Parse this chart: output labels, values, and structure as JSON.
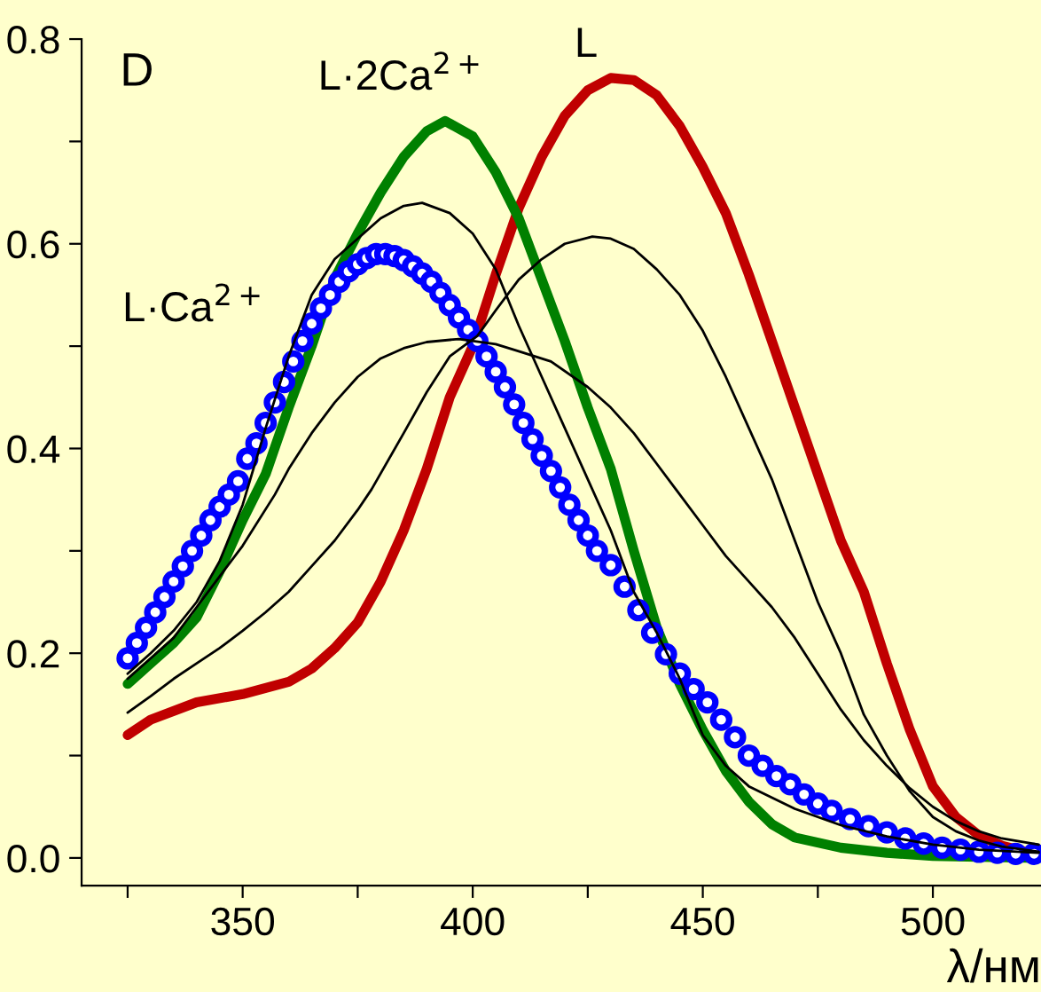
{
  "chart_data": {
    "type": "line",
    "ylabel": "D",
    "xlabel": "λ/нм",
    "xlim": [
      315,
      523.5
    ],
    "ylim": [
      -0.027,
      0.8
    ],
    "xticks": [
      {
        "value": 325,
        "label": null
      },
      350,
      {
        "value": 375,
        "label": null
      },
      400,
      {
        "value": 425,
        "label": null
      },
      450,
      {
        "value": 475,
        "label": null
      },
      500
    ],
    "yticks": [
      {
        "value": 0,
        "label": "0.0"
      },
      {
        "value": 0.1,
        "label": null
      },
      0.2,
      {
        "value": 0.3,
        "label": null
      },
      0.4,
      {
        "value": 0.5,
        "label": null
      },
      0.6,
      {
        "value": 0.7,
        "label": null
      },
      0.8
    ],
    "grid": false,
    "legend": false,
    "series": [
      {
        "name": "L",
        "color": "#c00000",
        "x": [
          325,
          330,
          340,
          350,
          360,
          365,
          370,
          375,
          380,
          385,
          390,
          395,
          400,
          405,
          410,
          415,
          420,
          425,
          430,
          435,
          440,
          445,
          450,
          455,
          460,
          465,
          470,
          475,
          480,
          485,
          490,
          495,
          500,
          505,
          510,
          515,
          520,
          523
        ],
        "values": [
          0.12,
          0.135,
          0.152,
          0.16,
          0.172,
          0.185,
          0.205,
          0.23,
          0.27,
          0.32,
          0.38,
          0.45,
          0.5,
          0.57,
          0.635,
          0.685,
          0.725,
          0.75,
          0.762,
          0.76,
          0.745,
          0.715,
          0.675,
          0.63,
          0.57,
          0.505,
          0.44,
          0.375,
          0.31,
          0.26,
          0.19,
          0.125,
          0.07,
          0.04,
          0.022,
          0.012,
          0.006,
          0.004
        ]
      },
      {
        "name": "L·2Ca$^{2+}$",
        "color": "#008000",
        "x": [
          325,
          330,
          335,
          340,
          345,
          350,
          355,
          360,
          365,
          370,
          375,
          380,
          385,
          390,
          394,
          400,
          405,
          410,
          415,
          420,
          425,
          430,
          435,
          440,
          445,
          450,
          455,
          460,
          465,
          470,
          480,
          490,
          500,
          510,
          523
        ],
        "values": [
          0.17,
          0.19,
          0.21,
          0.235,
          0.28,
          0.33,
          0.375,
          0.44,
          0.5,
          0.566,
          0.61,
          0.65,
          0.685,
          0.71,
          0.72,
          0.705,
          0.67,
          0.625,
          0.565,
          0.505,
          0.44,
          0.38,
          0.3,
          0.225,
          0.17,
          0.125,
          0.085,
          0.055,
          0.033,
          0.02,
          0.01,
          0.005,
          0.002,
          0.001,
          0
        ]
      },
      {
        "name": "L·Ca$^{2+}$",
        "color": "#0000ff",
        "type": "scatter",
        "x": [
          325,
          327,
          329,
          331,
          333,
          335,
          337,
          339,
          341,
          343,
          345,
          347,
          349,
          351,
          353,
          355,
          357,
          359,
          361,
          363,
          365,
          367,
          369,
          371,
          373,
          375,
          377,
          379,
          381,
          383,
          385,
          387,
          389,
          391,
          393,
          395,
          397,
          399,
          401,
          403,
          405,
          407,
          409,
          411,
          413,
          415,
          417,
          419,
          421,
          423,
          425,
          427,
          430,
          433,
          436,
          439,
          442,
          445,
          448,
          451,
          454,
          457,
          460,
          463,
          466,
          469,
          472,
          475,
          478,
          482,
          486,
          490,
          494,
          498,
          502,
          506,
          510,
          514,
          518,
          522
        ],
        "values": [
          0.195,
          0.21,
          0.225,
          0.24,
          0.255,
          0.27,
          0.285,
          0.3,
          0.315,
          0.33,
          0.343,
          0.355,
          0.368,
          0.39,
          0.405,
          0.425,
          0.445,
          0.465,
          0.485,
          0.505,
          0.522,
          0.537,
          0.55,
          0.563,
          0.573,
          0.58,
          0.586,
          0.59,
          0.59,
          0.588,
          0.584,
          0.578,
          0.571,
          0.563,
          0.552,
          0.54,
          0.528,
          0.516,
          0.505,
          0.49,
          0.475,
          0.46,
          0.443,
          0.425,
          0.409,
          0.393,
          0.378,
          0.362,
          0.345,
          0.33,
          0.315,
          0.3,
          0.286,
          0.265,
          0.242,
          0.22,
          0.199,
          0.18,
          0.165,
          0.152,
          0.135,
          0.118,
          0.1,
          0.09,
          0.08,
          0.072,
          0.062,
          0.053,
          0.046,
          0.038,
          0.031,
          0.025,
          0.019,
          0.014,
          0.01,
          0.008,
          0.006,
          0.005,
          0.004,
          0.004
        ]
      },
      {
        "color": "#000000",
        "x": [
          325,
          330,
          335,
          340,
          345,
          350,
          355,
          360,
          365,
          370,
          375,
          380,
          385,
          389,
          395,
          400,
          405,
          410,
          415,
          420,
          425,
          430,
          435,
          440,
          445,
          450,
          455,
          460,
          470,
          480,
          490,
          500,
          510,
          523
        ],
        "values": [
          0.18,
          0.2,
          0.222,
          0.25,
          0.29,
          0.345,
          0.42,
          0.49,
          0.55,
          0.585,
          0.605,
          0.625,
          0.637,
          0.64,
          0.63,
          0.61,
          0.575,
          0.52,
          0.47,
          0.42,
          0.37,
          0.32,
          0.26,
          0.22,
          0.175,
          0.12,
          0.09,
          0.07,
          0.048,
          0.032,
          0.021,
          0.013,
          0.008,
          0.005
        ]
      },
      {
        "color": "#000000",
        "x": [
          325,
          330,
          335,
          340,
          345,
          350,
          357,
          360,
          365,
          370,
          375,
          380,
          385,
          390,
          397,
          405,
          410,
          417,
          425,
          430,
          435,
          440,
          445,
          450,
          455,
          460,
          465,
          470,
          475,
          480,
          485,
          490,
          495,
          500,
          505,
          510,
          515,
          523
        ],
        "values": [
          0.175,
          0.195,
          0.215,
          0.245,
          0.275,
          0.305,
          0.355,
          0.38,
          0.415,
          0.445,
          0.47,
          0.488,
          0.498,
          0.504,
          0.507,
          0.502,
          0.495,
          0.485,
          0.46,
          0.44,
          0.415,
          0.385,
          0.355,
          0.325,
          0.295,
          0.27,
          0.245,
          0.215,
          0.18,
          0.145,
          0.115,
          0.09,
          0.068,
          0.05,
          0.036,
          0.026,
          0.019,
          0.013
        ]
      },
      {
        "color": "#000000",
        "x": [
          325,
          330,
          335,
          340,
          345,
          350,
          355,
          360,
          365,
          370,
          375,
          378,
          385,
          390,
          395,
          401,
          405,
          410,
          415,
          420,
          426,
          430,
          435,
          440,
          445,
          450,
          455,
          460,
          465,
          470,
          475,
          480,
          485,
          490,
          495,
          500,
          505,
          510,
          515,
          523
        ],
        "values": [
          0.142,
          0.158,
          0.175,
          0.19,
          0.205,
          0.222,
          0.24,
          0.26,
          0.285,
          0.31,
          0.34,
          0.36,
          0.415,
          0.455,
          0.49,
          0.51,
          0.535,
          0.565,
          0.585,
          0.6,
          0.607,
          0.605,
          0.595,
          0.575,
          0.55,
          0.515,
          0.47,
          0.42,
          0.37,
          0.31,
          0.25,
          0.2,
          0.14,
          0.1,
          0.065,
          0.04,
          0.026,
          0.017,
          0.011,
          0.006
        ]
      }
    ]
  }
}
